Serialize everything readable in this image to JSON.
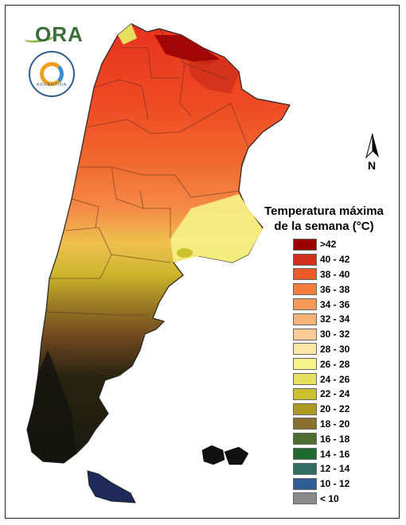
{
  "legend": {
    "title_line1": "Temperatura máxima",
    "title_line2": "de la semana (°C)",
    "items": [
      {
        "label": ">42",
        "color": "#9a0000"
      },
      {
        "label": "40 - 42",
        "color": "#d0301c"
      },
      {
        "label": "38 - 40",
        "color": "#ef5a2a"
      },
      {
        "label": "36 - 38",
        "color": "#f47d3c"
      },
      {
        "label": "34 - 36",
        "color": "#f69a5a"
      },
      {
        "label": "32 - 34",
        "color": "#f9b27a"
      },
      {
        "label": "30 - 32",
        "color": "#fbcc98"
      },
      {
        "label": "28 - 30",
        "color": "#fde6a6"
      },
      {
        "label": "26 - 28",
        "color": "#f9f28a"
      },
      {
        "label": "24 - 26",
        "color": "#e6e05e"
      },
      {
        "label": "22 - 24",
        "color": "#cdc030"
      },
      {
        "label": "20 - 22",
        "color": "#ad9a22"
      },
      {
        "label": "18 - 20",
        "color": "#8c7030"
      },
      {
        "label": "16 - 18",
        "color": "#4d6e2e"
      },
      {
        "label": "14 - 16",
        "color": "#1f6a2e"
      },
      {
        "label": "12 - 14",
        "color": "#316d62"
      },
      {
        "label": "10 - 12",
        "color": "#2f5d94"
      },
      {
        "label": "< 10",
        "color": "#8a8a8a"
      }
    ]
  },
  "logos": {
    "ora_text": "ORA",
    "smn_text": "ARGENTINA"
  },
  "north_arrow": {
    "label": "N"
  },
  "map_colors": {
    "outline": "#222222",
    "province_line": "#5a3020"
  }
}
